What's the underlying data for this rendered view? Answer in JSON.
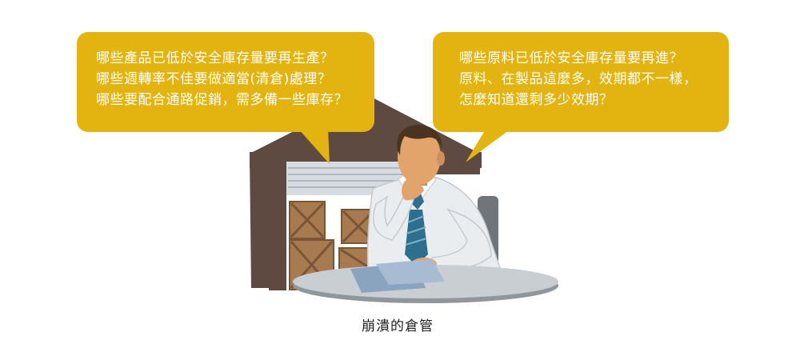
{
  "left_bubble": {
    "lines": [
      "哪些產品已低於安全庫存量要再生產？",
      "哪些週轉率不佳要做適當(清倉)處理？",
      "哪些要配合通路促銷，需多備一些庫存？"
    ]
  },
  "right_bubble": {
    "lines": [
      "哪些原料已低於安全庫存量要再進？",
      "原料、在製品這麼多，效期都不一樣，",
      "怎麼知道還剩多少效期？"
    ]
  },
  "caption": "崩潰的倉管",
  "colors": {
    "bubble": "#E3B40F",
    "warehouse": "#5E4A40",
    "crate": "#A77A4F",
    "shirt": "#E9EDF0",
    "tie": "#2E6E8E",
    "table": "#C9CED3",
    "skin": "#E2A46A"
  }
}
